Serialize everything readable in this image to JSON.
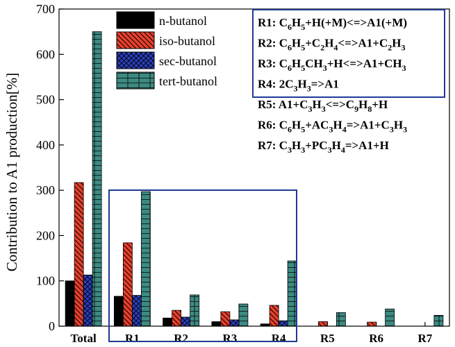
{
  "chart_data": {
    "type": "bar",
    "ylabel": "Contribution to A1 production[%]",
    "xlabel": "",
    "ylim": [
      0,
      700
    ],
    "yticks": [
      0,
      100,
      200,
      300,
      400,
      500,
      600,
      700
    ],
    "categories": [
      "Total",
      "R1",
      "R2",
      "R3",
      "R4",
      "R5",
      "R6",
      "R7"
    ],
    "series": [
      {
        "name": "n-butanol",
        "color": "#000000",
        "pattern": "solid",
        "values": [
          100,
          66,
          18,
          10,
          5,
          0,
          0,
          0
        ]
      },
      {
        "name": "iso-butanol",
        "color": "#e8402c",
        "pattern": "hatch",
        "values": [
          317,
          184,
          35,
          32,
          46,
          10,
          9,
          0
        ]
      },
      {
        "name": "sec-butanol",
        "color": "#2a3fbf",
        "pattern": "crosshatch",
        "values": [
          113,
          68,
          20,
          14,
          12,
          0,
          0,
          0
        ]
      },
      {
        "name": "tert-butanol",
        "color": "#3d8a82",
        "pattern": "grid",
        "values": [
          650,
          297,
          69,
          49,
          144,
          30,
          38,
          24
        ]
      }
    ],
    "legend": "top-left",
    "highlight_box_color": "#1f3a93",
    "highlighted_categories": [
      "R1",
      "R2",
      "R3",
      "R4"
    ],
    "reactions": [
      {
        "id": "R1:",
        "parts": [
          [
            "C"
          ],
          [
            "6",
            "sub"
          ],
          [
            "H"
          ],
          [
            "5",
            "sub"
          ],
          [
            "+H(+M)<=>A1(+M)"
          ]
        ]
      },
      {
        "id": "R2:",
        "parts": [
          [
            "C"
          ],
          [
            "6",
            "sub"
          ],
          [
            "H"
          ],
          [
            "5",
            "sub"
          ],
          [
            "+C"
          ],
          [
            "2",
            "sub"
          ],
          [
            "H"
          ],
          [
            "4",
            "sub"
          ],
          [
            "<=>A1+C"
          ],
          [
            "2",
            "sub"
          ],
          [
            "H"
          ],
          [
            "3",
            "sub"
          ]
        ]
      },
      {
        "id": "R3:",
        "parts": [
          [
            "C"
          ],
          [
            "6",
            "sub"
          ],
          [
            "H"
          ],
          [
            "5",
            "sub"
          ],
          [
            "CH"
          ],
          [
            "3",
            "sub"
          ],
          [
            "+H<=>A1+CH"
          ],
          [
            "3",
            "sub"
          ]
        ]
      },
      {
        "id": "R4:",
        "parts": [
          [
            "2C"
          ],
          [
            "3",
            "sub"
          ],
          [
            "H"
          ],
          [
            "3",
            "sub"
          ],
          [
            "=>A1"
          ]
        ]
      },
      {
        "id": "R5:",
        "parts": [
          [
            "A1+C"
          ],
          [
            "3",
            "sub"
          ],
          [
            "H"
          ],
          [
            "3",
            "sub"
          ],
          [
            "<=>C"
          ],
          [
            "9",
            "sub"
          ],
          [
            "H"
          ],
          [
            "8",
            "sub"
          ],
          [
            "+H"
          ]
        ]
      },
      {
        "id": "R6:",
        "parts": [
          [
            "C"
          ],
          [
            "6",
            "sub"
          ],
          [
            "H"
          ],
          [
            "5",
            "sub"
          ],
          [
            "+AC"
          ],
          [
            "3",
            "sub"
          ],
          [
            "H"
          ],
          [
            "4",
            "sub"
          ],
          [
            "=>A1+C"
          ],
          [
            "3",
            "sub"
          ],
          [
            "H"
          ],
          [
            "3",
            "sub"
          ]
        ]
      },
      {
        "id": "R7:",
        "parts": [
          [
            "C"
          ],
          [
            "3",
            "sub"
          ],
          [
            "H"
          ],
          [
            "3",
            "sub"
          ],
          [
            "+PC"
          ],
          [
            "3",
            "sub"
          ],
          [
            "H"
          ],
          [
            "4",
            "sub"
          ],
          [
            "=>A1+H"
          ]
        ]
      }
    ]
  }
}
